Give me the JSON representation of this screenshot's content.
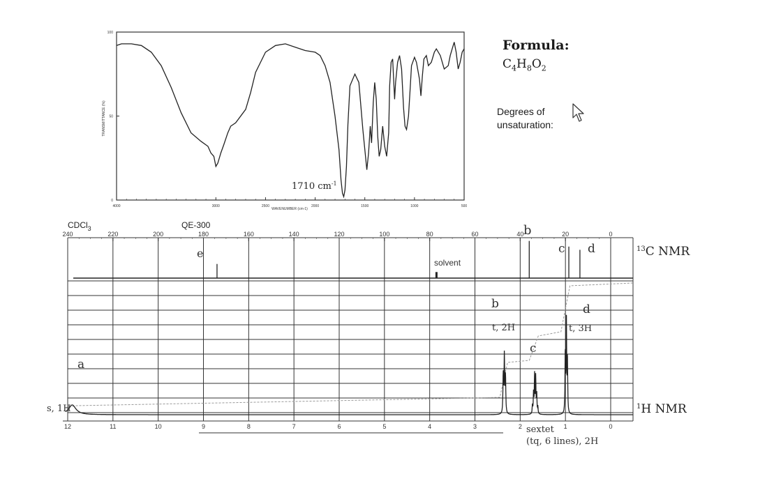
{
  "info": {
    "formula_label": "Formula:",
    "formula_value": "C4H8O2",
    "formula_parts": [
      "C",
      "4",
      "H",
      "8",
      "O",
      "2"
    ],
    "degrees_label_line1": "Degrees of",
    "degrees_label_line2": "unsaturation:"
  },
  "chart_data": [
    {
      "type": "line",
      "title": "",
      "xlabel": "WAVENUMBER (cm-1)",
      "ylabel": "TRANSMITTANCE (%)",
      "xlim": [
        4000,
        500
      ],
      "ylim": [
        0,
        100
      ],
      "x_ticks": [
        "4000",
        "3000",
        "2500",
        "2000",
        "1500",
        "1000",
        "500"
      ],
      "y_ticks": [
        "0",
        "50",
        "100"
      ],
      "annotation": "1710 cm-1",
      "series": [
        {
          "x": [
            4000,
            3950,
            3850,
            3750,
            3650,
            3550,
            3450,
            3350,
            3250,
            3150,
            3080,
            3050,
            3020,
            3000,
            2980,
            2950,
            2920,
            2880,
            2850,
            2800,
            2700,
            2650,
            2600,
            2500,
            2400,
            2300,
            2200,
            2100,
            2000,
            1950,
            1900,
            1850,
            1800,
            1760,
            1740,
            1725,
            1712,
            1700,
            1685,
            1670,
            1650,
            1600,
            1560,
            1520,
            1480,
            1462,
            1445,
            1432,
            1415,
            1400,
            1385,
            1370,
            1355,
            1340,
            1320,
            1300,
            1280,
            1260,
            1250,
            1235,
            1220,
            1210,
            1200,
            1190,
            1170,
            1150,
            1130,
            1110,
            1095,
            1080,
            1060,
            1045,
            1030,
            1000,
            980,
            950,
            935,
            920,
            905,
            880,
            860,
            830,
            800,
            780,
            740,
            700,
            660,
            640,
            620,
            600,
            580,
            560,
            540,
            520,
            500
          ],
          "y": [
            92,
            93,
            93,
            92,
            88,
            80,
            67,
            52,
            40,
            35,
            32,
            28,
            26,
            20,
            22,
            28,
            33,
            40,
            44,
            46,
            54,
            64,
            76,
            88,
            92,
            93,
            91,
            89,
            88,
            86,
            80,
            70,
            50,
            30,
            12,
            4,
            2,
            6,
            20,
            45,
            68,
            75,
            70,
            42,
            18,
            28,
            44,
            34,
            58,
            70,
            60,
            38,
            26,
            30,
            44,
            32,
            26,
            40,
            68,
            82,
            84,
            72,
            60,
            70,
            82,
            86,
            78,
            55,
            44,
            42,
            50,
            65,
            80,
            85,
            82,
            72,
            62,
            74,
            84,
            86,
            80,
            82,
            88,
            90,
            86,
            78,
            80,
            86,
            90,
            94,
            88,
            78,
            82,
            88,
            90
          ]
        }
      ]
    },
    {
      "type": "line",
      "title": "",
      "header_left": "CDCl3",
      "header_center": "QE-300",
      "name": "13C NMR",
      "xlim": [
        240,
        0
      ],
      "x_ticks": [
        "240",
        "220",
        "200",
        "180",
        "160",
        "140",
        "120",
        "100",
        "80",
        "60",
        "40",
        "20",
        "0"
      ],
      "peaks": [
        {
          "ppm": 174.0,
          "label": "e",
          "height": 0.35
        },
        {
          "ppm": 77.0,
          "label": "solvent",
          "height": 0.15
        },
        {
          "ppm": 36.0,
          "label": "b",
          "height": 0.92
        },
        {
          "ppm": 18.5,
          "label": "c",
          "height": 0.78
        },
        {
          "ppm": 13.6,
          "label": "d",
          "height": 0.7
        }
      ]
    },
    {
      "type": "line",
      "title": "",
      "name": "1H NMR",
      "xlim": [
        12,
        0
      ],
      "x_ticks": [
        "12",
        "11",
        "10",
        "9",
        "8",
        "7",
        "6",
        "5",
        "4",
        "3",
        "2",
        "1",
        "0"
      ],
      "peaks": [
        {
          "ppm": 11.9,
          "label": "a",
          "multiplicity": "s, 1H"
        },
        {
          "ppm": 2.35,
          "label": "b",
          "multiplicity": "t, 2H"
        },
        {
          "ppm": 1.67,
          "label": "c",
          "multiplicity": "sextet (tq, 6 lines), 2H"
        },
        {
          "ppm": 0.98,
          "label": "d",
          "multiplicity": "t, 3H"
        }
      ]
    }
  ],
  "labels": {
    "ir_annotation": "1710 cm-1",
    "cdcl3": "CDCl3",
    "instrument": "QE-300",
    "c13_name": "13C NMR",
    "h1_name": "1H NMR",
    "c13_e": "e",
    "c13_solvent": "solvent",
    "c13_b": "b",
    "c13_c": "c",
    "c13_d": "d",
    "h1_a": "a",
    "h1_a_mult": "s, 1H",
    "h1_b": "b",
    "h1_b_mult": "t, 2H",
    "h1_c": "c",
    "h1_d": "d",
    "h1_d_mult": "t, 3H",
    "h1_c_mult_line1": "sextet",
    "h1_c_mult_line2": "(tq, 6 lines), 2H"
  }
}
